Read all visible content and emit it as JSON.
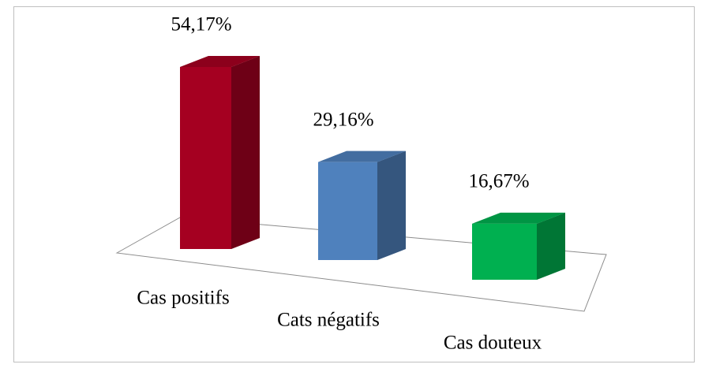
{
  "chart_data": {
    "type": "bar3d",
    "categories": [
      "Cas positifs",
      "Cats négatifs",
      "Cas douteux"
    ],
    "values": [
      54.17,
      29.16,
      16.67
    ],
    "value_labels": [
      "54,17%",
      "29,16%",
      "16,67%"
    ],
    "colors": [
      "#a50021",
      "#4f81bd",
      "#00b050"
    ]
  }
}
